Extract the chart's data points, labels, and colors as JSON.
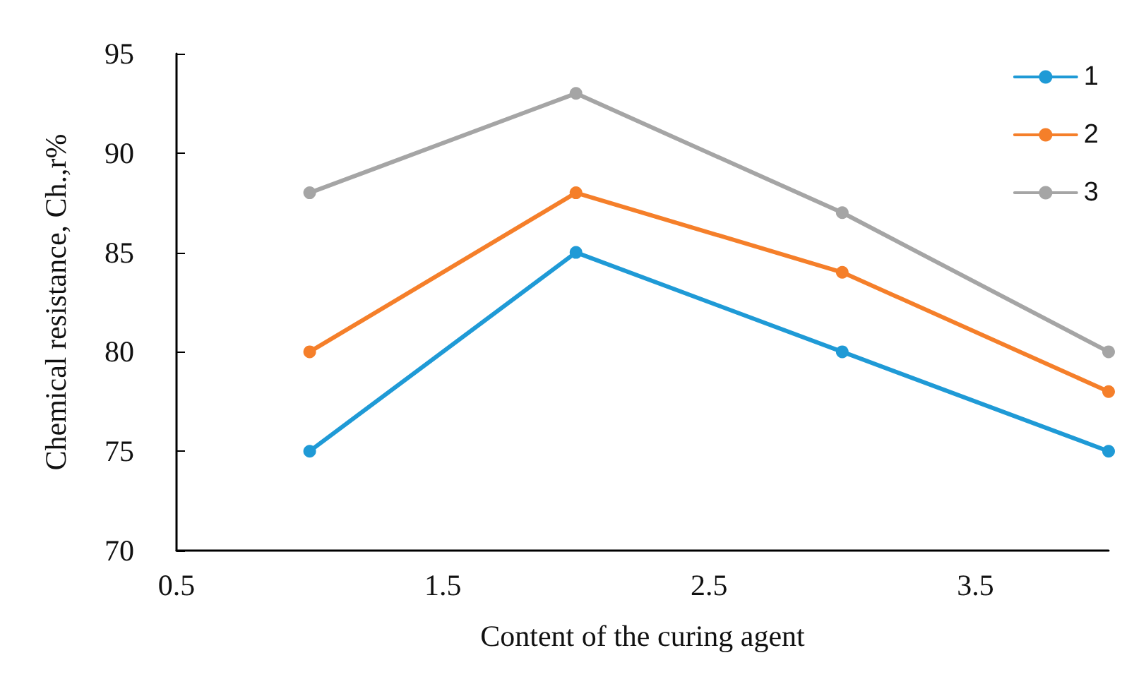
{
  "chart_data": {
    "type": "line",
    "xlabel": "Content of the curing agent",
    "ylabel": "Chemical resistance, Ch.,r%",
    "x": [
      1,
      2,
      3,
      4
    ],
    "series": [
      {
        "name": "1",
        "color": "#1f9ad6",
        "values": [
          75,
          85,
          80,
          75
        ]
      },
      {
        "name": "2",
        "color": "#f57f2a",
        "values": [
          80,
          88,
          84,
          78
        ]
      },
      {
        "name": "3",
        "color": "#a5a5a5",
        "values": [
          88,
          93,
          87,
          80
        ]
      }
    ],
    "xlim": [
      0.5,
      4
    ],
    "xticks": [
      0.5,
      1.5,
      2.5,
      3.5
    ],
    "ylim": [
      70,
      95
    ],
    "yticks": [
      70,
      75,
      80,
      85,
      90,
      95
    ],
    "grid": false,
    "legend": "top right",
    "marker": "circle",
    "line_style": "solid"
  }
}
